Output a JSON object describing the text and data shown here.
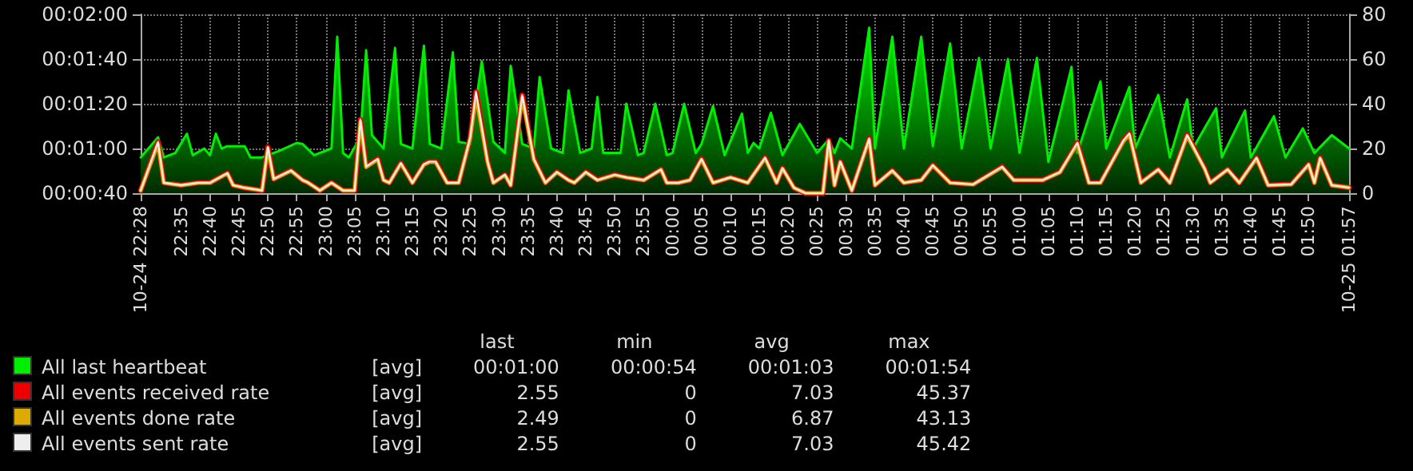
{
  "chart_data": {
    "type": "line",
    "legend": "bottom",
    "grid": true,
    "marker": "none",
    "line_style": "solid",
    "ylim": [
      40,
      120
    ],
    "yticks": [
      {
        "value": 40,
        "label": "00:00:40"
      },
      {
        "value": 60,
        "label": "00:01:00"
      },
      {
        "value": 80,
        "label": "00:01:20"
      },
      {
        "value": 100,
        "label": "00:01:40"
      },
      {
        "value": 120,
        "label": "00:02:00"
      }
    ],
    "y2lim": [
      0,
      80
    ],
    "y2ticks": [
      0,
      20,
      40,
      60,
      80
    ],
    "xlim": [
      "--10-24T22:28",
      "--10-25T01:57"
    ],
    "xticks": [
      {
        "value": "--10-24T22:28",
        "label": "10-24 22:28"
      },
      {
        "value": "--10-24T22:35",
        "label": "22:35"
      },
      {
        "value": "--10-24T22:40",
        "label": "22:40"
      },
      {
        "value": "--10-24T22:45",
        "label": "22:45"
      },
      {
        "value": "--10-24T22:50",
        "label": "22:50"
      },
      {
        "value": "--10-24T22:55",
        "label": "22:55"
      },
      {
        "value": "--10-24T23:00",
        "label": "23:00"
      },
      {
        "value": "--10-24T23:05",
        "label": "23:05"
      },
      {
        "value": "--10-24T23:10",
        "label": "23:10"
      },
      {
        "value": "--10-24T23:15",
        "label": "23:15"
      },
      {
        "value": "--10-24T23:20",
        "label": "23:20"
      },
      {
        "value": "--10-24T23:25",
        "label": "23:25"
      },
      {
        "value": "--10-24T23:30",
        "label": "23:30"
      },
      {
        "value": "--10-24T23:35",
        "label": "23:35"
      },
      {
        "value": "--10-24T23:40",
        "label": "23:40"
      },
      {
        "value": "--10-24T23:45",
        "label": "23:45"
      },
      {
        "value": "--10-24T23:50",
        "label": "23:50"
      },
      {
        "value": "--10-24T23:55",
        "label": "23:55"
      },
      {
        "value": "--10-25T00:00",
        "label": "00:00"
      },
      {
        "value": "--10-25T00:05",
        "label": "00:05"
      },
      {
        "value": "--10-25T00:10",
        "label": "00:10"
      },
      {
        "value": "--10-25T00:15",
        "label": "00:15"
      },
      {
        "value": "--10-25T00:20",
        "label": "00:20"
      },
      {
        "value": "--10-25T00:25",
        "label": "00:25"
      },
      {
        "value": "--10-25T00:30",
        "label": "00:30"
      },
      {
        "value": "--10-25T00:35",
        "label": "00:35"
      },
      {
        "value": "--10-25T00:40",
        "label": "00:40"
      },
      {
        "value": "--10-25T00:45",
        "label": "00:45"
      },
      {
        "value": "--10-25T00:50",
        "label": "00:50"
      },
      {
        "value": "--10-25T00:55",
        "label": "00:55"
      },
      {
        "value": "--10-25T01:00",
        "label": "01:00"
      },
      {
        "value": "--10-25T01:05",
        "label": "01:05"
      },
      {
        "value": "--10-25T01:10",
        "label": "01:10"
      },
      {
        "value": "--10-25T01:15",
        "label": "01:15"
      },
      {
        "value": "--10-25T01:20",
        "label": "01:20"
      },
      {
        "value": "--10-25T01:25",
        "label": "01:25"
      },
      {
        "value": "--10-25T01:30",
        "label": "01:30"
      },
      {
        "value": "--10-25T01:35",
        "label": "01:35"
      },
      {
        "value": "--10-25T01:40",
        "label": "01:40"
      },
      {
        "value": "--10-25T01:45",
        "label": "01:45"
      },
      {
        "value": "--10-25T01:50",
        "label": "01:50"
      },
      {
        "value": "--10-25T01:57",
        "label": "10-25 01:57"
      }
    ],
    "x": [
      "--10-24T22:28",
      "--10-24T22:31",
      "--10-24T22:32",
      "--10-24T22:35",
      "--10-24T22:38",
      "--10-24T22:40",
      "--10-24T22:43",
      "--10-24T22:44",
      "--10-24T22:46",
      "--10-24T22:49",
      "--10-24T22:50",
      "--10-24T22:51",
      "--10-24T22:54",
      "--10-24T22:56",
      "--10-24T22:57",
      "--10-24T22:59",
      "--10-24T23:01",
      "--10-24T23:03",
      "--10-24T23:05",
      "--10-24T23:06",
      "--10-24T23:07",
      "--10-24T23:09",
      "--10-24T23:10",
      "--10-24T23:11",
      "--10-24T23:13",
      "--10-24T23:15",
      "--10-24T23:17",
      "--10-24T23:18",
      "--10-24T23:19",
      "--10-24T23:21",
      "--10-24T23:23",
      "--10-24T23:25",
      "--10-24T23:26",
      "--10-24T23:28",
      "--10-24T23:29",
      "--10-24T23:31",
      "--10-24T23:32",
      "--10-24T23:34",
      "--10-24T23:36",
      "--10-24T23:38",
      "--10-24T23:40",
      "--10-24T23:42",
      "--10-24T23:43",
      "--10-24T23:45",
      "--10-24T23:47",
      "--10-24T23:50",
      "--10-24T23:52",
      "--10-24T23:55",
      "--10-24T23:58",
      "--10-24T23:59",
      "--10-25T00:01",
      "--10-25T00:03",
      "--10-25T00:05",
      "--10-25T00:07",
      "--10-25T00:10",
      "--10-25T00:13",
      "--10-25T00:16",
      "--10-25T00:18",
      "--10-25T00:19",
      "--10-25T00:21",
      "--10-25T00:23",
      "--10-25T00:26",
      "--10-25T00:27",
      "--10-25T00:28",
      "--10-25T00:29",
      "--10-25T00:31",
      "--10-25T00:34",
      "--10-25T00:35",
      "--10-25T00:38",
      "--10-25T00:40",
      "--10-25T00:43",
      "--10-25T00:45",
      "--10-25T00:48",
      "--10-25T00:52",
      "--10-25T00:57",
      "--10-25T00:59",
      "--10-25T01:04",
      "--10-25T01:07",
      "--10-25T01:10",
      "--10-25T01:12",
      "--10-25T01:14",
      "--10-25T01:18",
      "--10-25T01:19",
      "--10-25T01:21",
      "--10-25T01:24",
      "--10-25T01:26",
      "--10-25T01:29",
      "--10-25T01:32",
      "--10-25T01:33",
      "--10-25T01:36",
      "--10-25T01:38",
      "--10-25T01:41",
      "--10-25T01:43",
      "--10-25T01:47",
      "--10-25T01:50",
      "--10-25T01:51",
      "--10-25T01:52",
      "--10-25T01:54",
      "--10-25T01:57"
    ],
    "series": [
      {
        "name": "All last heartbeat",
        "type": "area",
        "color": "#00ee00",
        "x": [
          "--10-24T22:28",
          "--10-24T22:31",
          "--10-24T22:32",
          "--10-24T22:34",
          "--10-24T22:36",
          "--10-24T22:37",
          "--10-24T22:39",
          "--10-24T22:40",
          "--10-24T22:41",
          "--10-24T22:42",
          "--10-24T22:43",
          "--10-24T22:46",
          "--10-24T22:47",
          "--10-24T22:49",
          "--10-24T22:52",
          "--10-24T22:55",
          "--10-24T22:56",
          "--10-24T22:58",
          "--10-24T23:01",
          "--10-24T23:02",
          "--10-24T23:03",
          "--10-24T23:04",
          "--10-24T23:06",
          "--10-24T23:07",
          "--10-24T23:08",
          "--10-24T23:10",
          "--10-24T23:12",
          "--10-24T23:13",
          "--10-24T23:15",
          "--10-24T23:17",
          "--10-24T23:18",
          "--10-24T23:20",
          "--10-24T23:22",
          "--10-24T23:23",
          "--10-24T23:25",
          "--10-24T23:27",
          "--10-24T23:29",
          "--10-24T23:31",
          "--10-24T23:32",
          "--10-24T23:34",
          "--10-24T23:36",
          "--10-24T23:37",
          "--10-24T23:39",
          "--10-24T23:41",
          "--10-24T23:42",
          "--10-24T23:44",
          "--10-24T23:46",
          "--10-24T23:47",
          "--10-24T23:48",
          "--10-24T23:51",
          "--10-24T23:52",
          "--10-24T23:54",
          "--10-24T23:55",
          "--10-24T23:57",
          "--10-24T23:59",
          "--10-25T00:00",
          "--10-25T00:02",
          "--10-25T00:04",
          "--10-25T00:05",
          "--10-25T00:07",
          "--10-25T00:09",
          "--10-25T00:12",
          "--10-25T00:13",
          "--10-25T00:14",
          "--10-25T00:15",
          "--10-25T00:17",
          "--10-25T00:19",
          "--10-25T00:22",
          "--10-25T00:25",
          "--10-25T00:27",
          "--10-25T00:28",
          "--10-25T00:29",
          "--10-25T00:31",
          "--10-25T00:34",
          "--10-25T00:35",
          "--10-25T00:38",
          "--10-25T00:40",
          "--10-25T00:43",
          "--10-25T00:45",
          "--10-25T00:48",
          "--10-25T00:50",
          "--10-25T00:53",
          "--10-25T00:55",
          "--10-25T00:58",
          "--10-25T01:00",
          "--10-25T01:03",
          "--10-25T01:05",
          "--10-25T01:09",
          "--10-25T01:10",
          "--10-25T01:14",
          "--10-25T01:15",
          "--10-25T01:19",
          "--10-25T01:20",
          "--10-25T01:24",
          "--10-25T01:26",
          "--10-25T01:29",
          "--10-25T01:30",
          "--10-25T01:34",
          "--10-25T01:35",
          "--10-25T01:39",
          "--10-25T01:40",
          "--10-25T01:44",
          "--10-25T01:46",
          "--10-25T01:49",
          "--10-25T01:51",
          "--10-25T01:54",
          "--10-25T01:57"
        ],
        "values": [
          56,
          65,
          56,
          58,
          66.6,
          57,
          60,
          57,
          66.6,
          60,
          61,
          61,
          56,
          56,
          59,
          62.5,
          62,
          57,
          60,
          110,
          58,
          56,
          65,
          104,
          66,
          60,
          105,
          62,
          60,
          106,
          62,
          60,
          103,
          63,
          62,
          99,
          63,
          58,
          97,
          62,
          60,
          92,
          60,
          58,
          86,
          58,
          60,
          83,
          58,
          58,
          80,
          57,
          58,
          80,
          57,
          58,
          80,
          58,
          62,
          79,
          57,
          75.6,
          58,
          62.5,
          60,
          76,
          57,
          71,
          58,
          64,
          58,
          64.5,
          60,
          114,
          60,
          110,
          60,
          110,
          61,
          107,
          60,
          100.5,
          60,
          100,
          58,
          100.5,
          54,
          96.5,
          58,
          90,
          60,
          87.5,
          60,
          84,
          56,
          82,
          60,
          78,
          56,
          77,
          56,
          74.4,
          56,
          69,
          58,
          66,
          60
        ]
      },
      {
        "name": "All events received rate",
        "axis": "y2",
        "color": "#ee0000",
        "values": [
          1.2,
          23,
          4.7,
          3.6,
          4.7,
          4.7,
          9,
          3.6,
          2.4,
          1.2,
          20.7,
          6.4,
          10.2,
          5.9,
          4.7,
          1.2,
          4.7,
          1.2,
          1.2,
          33,
          11.9,
          15.4,
          5.9,
          4.7,
          13.5,
          4.7,
          13,
          14.2,
          14.2,
          4.7,
          4.7,
          25,
          45.4,
          14.2,
          4.7,
          8.3,
          3.6,
          43.9,
          15.4,
          4.7,
          9.5,
          5.9,
          4.7,
          9.5,
          5.9,
          8.3,
          7.1,
          5.9,
          10.7,
          4.7,
          4.7,
          5.9,
          15.4,
          4.7,
          7.1,
          4.7,
          15.9,
          4.7,
          11.2,
          2.4,
          0,
          0,
          23.7,
          3.6,
          14.2,
          1.2,
          24.5,
          3.6,
          10.2,
          4.7,
          5.9,
          12.6,
          4.7,
          4,
          11.9,
          5.9,
          5.9,
          9.5,
          22.6,
          4.7,
          4.7,
          23.7,
          26.8,
          4.7,
          10.7,
          4.7,
          26.1,
          11.2,
          4.7,
          10.7,
          4.7,
          15.9,
          3.6,
          4,
          13,
          4.7,
          15.9,
          3.6,
          2.5
        ]
      },
      {
        "name": "All events done rate",
        "axis": "y2",
        "color": "#ddaa00",
        "values": [
          1.2,
          22,
          4.6,
          3.5,
          4.6,
          4.6,
          8.8,
          3.5,
          2.4,
          1.2,
          20,
          6.2,
          10,
          5.8,
          4.6,
          1.2,
          4.6,
          1.2,
          1.2,
          32,
          11.6,
          15,
          5.8,
          4.6,
          13.2,
          4.6,
          12.7,
          13.9,
          13.9,
          4.6,
          4.6,
          24.5,
          43.1,
          13.9,
          4.6,
          8.1,
          3.5,
          42.8,
          15,
          4.6,
          9.3,
          5.8,
          4.6,
          9.3,
          5.8,
          8.1,
          7,
          5.8,
          10.5,
          4.6,
          4.6,
          5.8,
          15,
          4.6,
          7,
          4.6,
          15.5,
          4.6,
          11,
          2.4,
          0,
          0,
          23.2,
          3.5,
          13.9,
          1.2,
          24,
          3.5,
          10,
          4.6,
          5.8,
          12.3,
          4.6,
          3.9,
          11.6,
          5.8,
          5.8,
          9.3,
          22,
          4.6,
          4.6,
          23.2,
          26.2,
          4.6,
          10.5,
          4.6,
          25.5,
          11,
          4.6,
          10.5,
          4.6,
          15.5,
          3.5,
          3.9,
          12.7,
          4.6,
          15.5,
          3.5,
          2.5
        ]
      },
      {
        "name": "All events sent rate",
        "axis": "y2",
        "color": "#eeeeee",
        "values": [
          1.2,
          23,
          4.7,
          3.6,
          4.7,
          4.7,
          9,
          3.6,
          2.4,
          1.2,
          20.7,
          6.4,
          10.2,
          5.9,
          4.7,
          1.2,
          4.7,
          1.2,
          1.2,
          33,
          11.9,
          15.4,
          5.9,
          4.7,
          13.5,
          4.7,
          13,
          14.2,
          14.2,
          4.7,
          4.7,
          25,
          45.4,
          14.2,
          4.7,
          8.3,
          3.6,
          43.9,
          15.4,
          4.7,
          9.5,
          5.9,
          4.7,
          9.5,
          5.9,
          8.3,
          7.1,
          5.9,
          10.7,
          4.7,
          4.7,
          5.9,
          15.4,
          4.7,
          7.1,
          4.7,
          15.9,
          4.7,
          11.2,
          2.4,
          0,
          0,
          23.7,
          3.6,
          14.2,
          1.2,
          24.5,
          3.6,
          10.2,
          4.7,
          5.9,
          12.6,
          4.7,
          4,
          11.9,
          5.9,
          5.9,
          9.5,
          22.6,
          4.7,
          4.7,
          23.7,
          26.8,
          4.7,
          10.7,
          4.7,
          26.1,
          11.2,
          4.7,
          10.7,
          4.7,
          15.9,
          3.6,
          4,
          13,
          4.7,
          15.9,
          3.6,
          2.5
        ]
      }
    ],
    "annotations": [
      "last",
      "min",
      "avg",
      "max",
      "[avg]",
      "00:01:00",
      "00:00:54",
      "00:01:03",
      "00:01:54",
      "[avg]",
      "2.55",
      "0",
      "7.03",
      "45.37",
      "[avg]",
      "2.49",
      "0",
      "6.87",
      "43.13",
      "[avg]",
      "2.55",
      "0",
      "7.03",
      "45.42"
    ]
  }
}
